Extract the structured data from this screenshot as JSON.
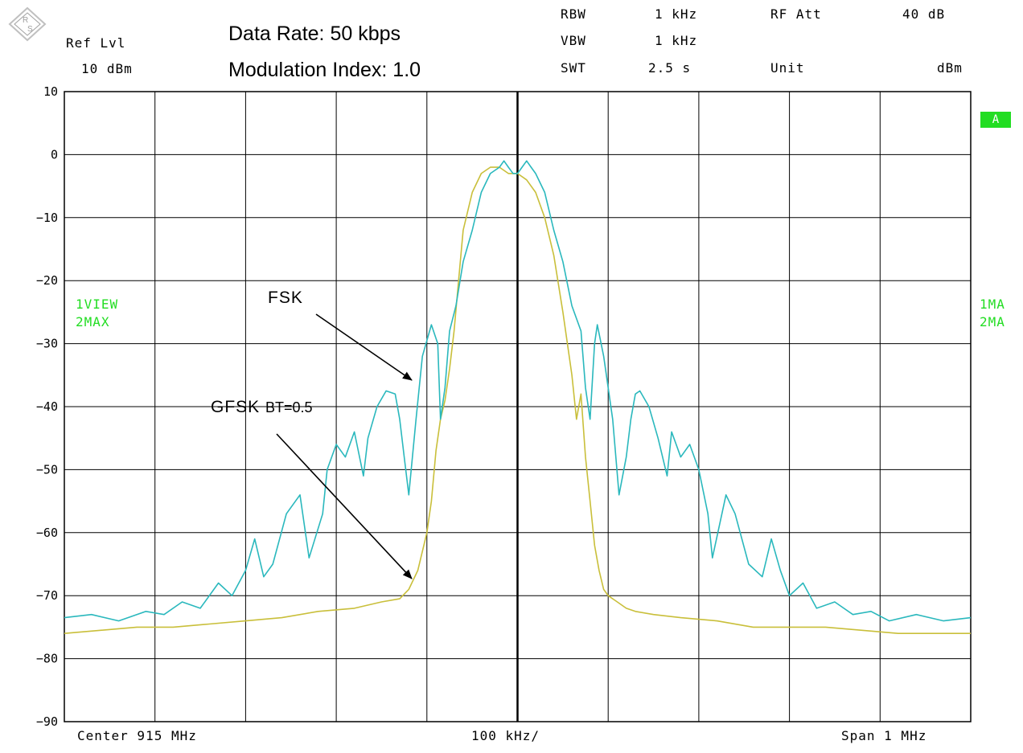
{
  "header": {
    "ref_lvl_label": "Ref Lvl",
    "ref_lvl_value": "10 dBm",
    "rbw_label": "RBW",
    "rbw_value": "1 kHz",
    "vbw_label": "VBW",
    "vbw_value": "1 kHz",
    "swt_label": "SWT",
    "swt_value": "2.5 s",
    "rf_att_label": "RF Att",
    "rf_att_value": "40 dB",
    "unit_label": "Unit",
    "unit_value": "dBm"
  },
  "annotations": {
    "data_rate": "Data Rate: 50 kbps",
    "mod_index": "Modulation Index: 1.0",
    "fsk": "FSK",
    "gfsk": "GFSK",
    "gfsk_bt": "BT=0.5"
  },
  "side_labels": {
    "left_1": "1VIEW",
    "left_2": "2MAX",
    "right_1": "1MA",
    "right_2": "2MA",
    "trace_badge": "A"
  },
  "footer": {
    "center": "Center 915 MHz",
    "div": "100 kHz/",
    "span": "Span 1 MHz"
  },
  "colors": {
    "fsk": "#2ab8bd",
    "gfsk": "#c9bf3a",
    "grid": "#000000",
    "label_green": "#22dd22"
  },
  "chart_data": {
    "type": "line",
    "xlabel": "",
    "ylabel": "",
    "x_unit": "kHz offset from center",
    "xlim": [
      -500,
      500
    ],
    "ylim": [
      -90,
      10
    ],
    "y_ticks": [
      10,
      0,
      -10,
      -20,
      -30,
      -40,
      -50,
      -60,
      -70,
      -80,
      -90
    ],
    "grid": true,
    "series": [
      {
        "name": "FSK",
        "color": "#2ab8bd",
        "x": [
          -500,
          -470,
          -440,
          -410,
          -390,
          -370,
          -350,
          -330,
          -315,
          -300,
          -290,
          -280,
          -270,
          -255,
          -240,
          -230,
          -215,
          -210,
          -200,
          -190,
          -180,
          -170,
          -165,
          -155,
          -145,
          -135,
          -130,
          -125,
          -120,
          -112,
          -105,
          -95,
          -88,
          -85,
          -80,
          -75,
          -68,
          -60,
          -50,
          -40,
          -30,
          -20,
          -15,
          -10,
          -5,
          0,
          5,
          10,
          15,
          20,
          30,
          40,
          50,
          60,
          70,
          75,
          80,
          85,
          88,
          95,
          105,
          112,
          120,
          125,
          130,
          135,
          145,
          155,
          165,
          170,
          180,
          190,
          200,
          210,
          215,
          230,
          240,
          255,
          270,
          280,
          290,
          300,
          315,
          330,
          350,
          370,
          390,
          410,
          440,
          470,
          500
        ],
        "values": [
          -73.5,
          -73,
          -74,
          -72.5,
          -73,
          -71,
          -72,
          -68,
          -70,
          -66,
          -61,
          -67,
          -65,
          -57,
          -54,
          -64,
          -57,
          -50,
          -46,
          -48,
          -44,
          -51,
          -45,
          -40,
          -37.5,
          -38,
          -42,
          -48,
          -54,
          -42,
          -32,
          -27,
          -30,
          -42,
          -37,
          -28,
          -24,
          -17,
          -12,
          -6,
          -3,
          -2,
          -1,
          -2,
          -3,
          -3,
          -2,
          -1,
          -2,
          -3,
          -6,
          -12,
          -17,
          -24,
          -28,
          -37,
          -42,
          -30,
          -27,
          -32,
          -42,
          -54,
          -48,
          -42,
          -38,
          -37.5,
          -40,
          -45,
          -51,
          -44,
          -48,
          -46,
          -50,
          -57,
          -64,
          -54,
          -57,
          -65,
          -67,
          -61,
          -66,
          -70,
          -68,
          -72,
          -71,
          -73,
          -72.5,
          -74,
          -73,
          -74,
          -73.5
        ]
      },
      {
        "name": "GFSK BT=0.5",
        "color": "#c9bf3a",
        "x": [
          -500,
          -460,
          -420,
          -380,
          -340,
          -300,
          -260,
          -220,
          -180,
          -150,
          -130,
          -120,
          -110,
          -100,
          -95,
          -90,
          -85,
          -80,
          -75,
          -70,
          -65,
          -60,
          -50,
          -40,
          -30,
          -20,
          -10,
          0,
          10,
          20,
          30,
          40,
          50,
          60,
          65,
          70,
          75,
          80,
          85,
          90,
          95,
          100,
          110,
          120,
          130,
          150,
          180,
          220,
          260,
          300,
          340,
          380,
          420,
          460,
          500
        ],
        "values": [
          -76,
          -75.5,
          -75,
          -75,
          -74.5,
          -74,
          -73.5,
          -72.5,
          -72,
          -71,
          -70.5,
          -69,
          -66,
          -60,
          -55,
          -47,
          -42,
          -39,
          -34,
          -28,
          -20,
          -12,
          -6,
          -3,
          -2,
          -2,
          -3,
          -3,
          -4,
          -6,
          -10,
          -16,
          -25,
          -35,
          -42,
          -38,
          -48,
          -55,
          -62,
          -66,
          -69,
          -70,
          -71,
          -72,
          -72.5,
          -73,
          -73.5,
          -74,
          -75,
          -75,
          -75,
          -75.5,
          -76,
          -76,
          -76
        ]
      }
    ]
  }
}
